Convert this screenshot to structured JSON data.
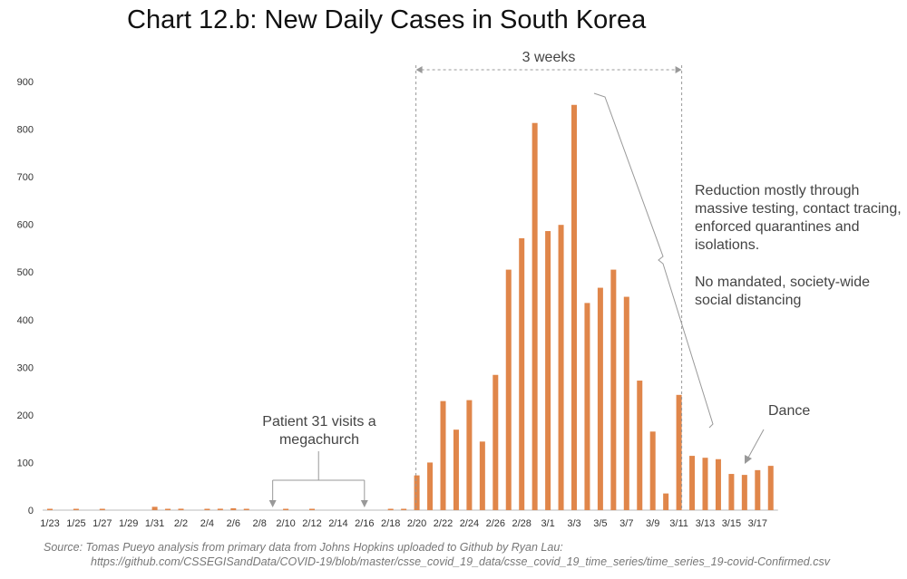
{
  "title": "Chart 12.b: New Daily Cases in South Korea",
  "source": {
    "line1": "Source: Tomas Pueyo analysis from primary data from Johns Hopkins uploaded to Github by Ryan Lau:",
    "line2": "https://github.com/CSSEGISandData/COVID-19/blob/master/csse_covid_19_data/csse_covid_19_time_series/time_series_19-covid-Confirmed.csv"
  },
  "annotations": {
    "weeks": "3 weeks",
    "reduction": "Reduction mostly through massive testing, contact tracing, enforced quarantines and isolations.",
    "no_distancing": "No mandated, society-wide social distancing",
    "patient": "Patient 31 visits a megachurch",
    "dance": "Dance"
  },
  "colors": {
    "bar": "#e0864a",
    "axis": "#bbbbbb",
    "annotation_line": "#999999"
  },
  "chart_data": {
    "type": "bar",
    "title": "Chart 12.b: New Daily Cases in South Korea",
    "xlabel": "",
    "ylabel": "",
    "ylim": [
      0,
      900
    ],
    "yticks": [
      0,
      100,
      200,
      300,
      400,
      500,
      600,
      700,
      800,
      900
    ],
    "grid": false,
    "xtick_labels": [
      "1/23",
      "1/25",
      "1/27",
      "1/29",
      "1/31",
      "2/2",
      "2/4",
      "2/6",
      "2/8",
      "2/10",
      "2/12",
      "2/14",
      "2/16",
      "2/18",
      "2/20",
      "2/22",
      "2/24",
      "2/26",
      "2/28",
      "3/1",
      "3/3",
      "3/5",
      "3/7",
      "3/9",
      "3/11",
      "3/13",
      "3/15",
      "3/17"
    ],
    "categories": [
      "1/23",
      "1/24",
      "1/25",
      "1/26",
      "1/27",
      "1/28",
      "1/29",
      "1/30",
      "1/31",
      "2/1",
      "2/2",
      "2/3",
      "2/4",
      "2/5",
      "2/6",
      "2/7",
      "2/8",
      "2/9",
      "2/10",
      "2/11",
      "2/12",
      "2/13",
      "2/14",
      "2/15",
      "2/16",
      "2/17",
      "2/18",
      "2/19",
      "2/20",
      "2/21",
      "2/22",
      "2/23",
      "2/24",
      "2/25",
      "2/26",
      "2/27",
      "2/28",
      "2/29",
      "3/1",
      "3/2",
      "3/3",
      "3/4",
      "3/5",
      "3/6",
      "3/7",
      "3/8",
      "3/9",
      "3/10",
      "3/11",
      "3/12",
      "3/13",
      "3/14",
      "3/15",
      "3/16",
      "3/17",
      "3/18"
    ],
    "values": [
      1,
      0,
      1,
      0,
      1,
      0,
      0,
      0,
      7,
      1,
      3,
      0,
      2,
      3,
      4,
      1,
      0,
      0,
      1,
      0,
      1,
      0,
      0,
      0,
      0,
      0,
      1,
      1,
      73,
      100,
      229,
      169,
      231,
      144,
      284,
      505,
      571,
      813,
      586,
      599,
      851,
      435,
      467,
      505,
      448,
      272,
      165,
      35,
      242,
      114,
      110,
      107,
      76,
      74,
      84,
      93
    ]
  }
}
